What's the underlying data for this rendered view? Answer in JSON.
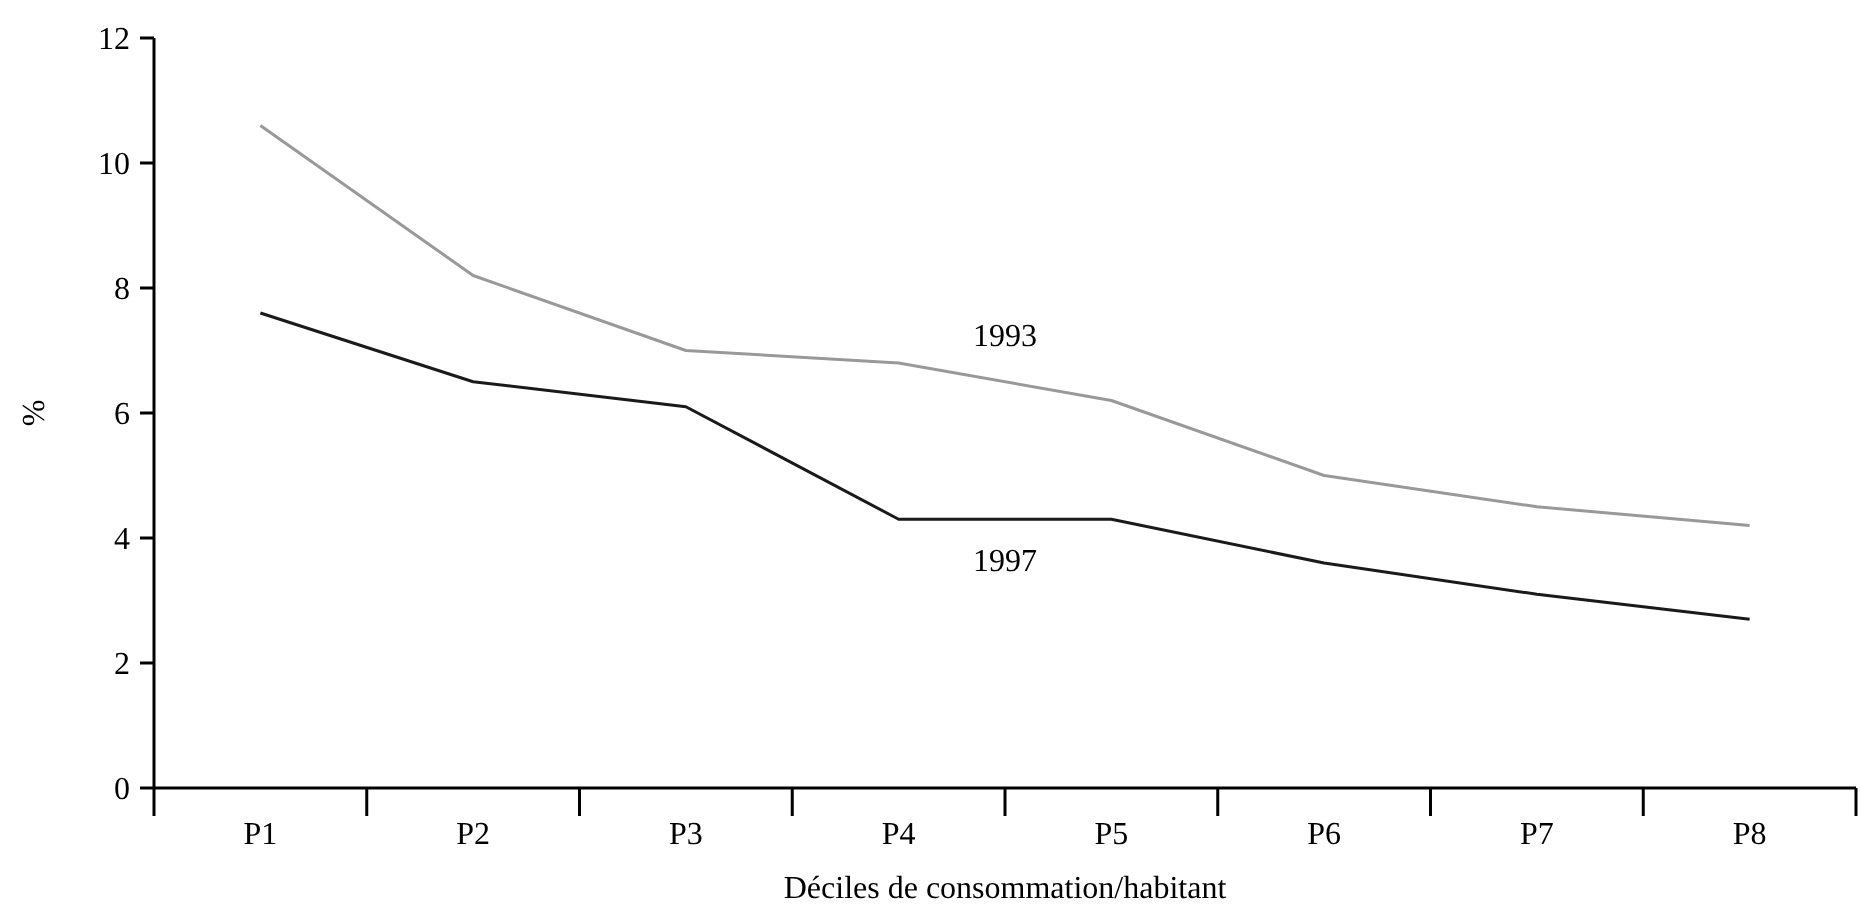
{
  "chart_data": {
    "type": "line",
    "xlabel": "Déciles de consommation/habitant",
    "ylabel": "%",
    "categories": [
      "P1",
      "P2",
      "P3",
      "P4",
      "P5",
      "P6",
      "P7",
      "P8"
    ],
    "ylim": [
      0,
      12
    ],
    "yticks": [
      0,
      2,
      4,
      6,
      8,
      10,
      12
    ],
    "grid": false,
    "legend": false,
    "marker": "none",
    "line_style": "solid",
    "series": [
      {
        "name": "1993",
        "color": "#999999",
        "values": [
          10.6,
          8.2,
          7.0,
          6.8,
          6.2,
          5.0,
          4.5,
          4.2
        ]
      },
      {
        "name": "1997",
        "color": "#1a1a1a",
        "values": [
          7.6,
          6.5,
          6.1,
          4.3,
          4.3,
          3.6,
          3.1,
          2.7
        ]
      }
    ]
  }
}
